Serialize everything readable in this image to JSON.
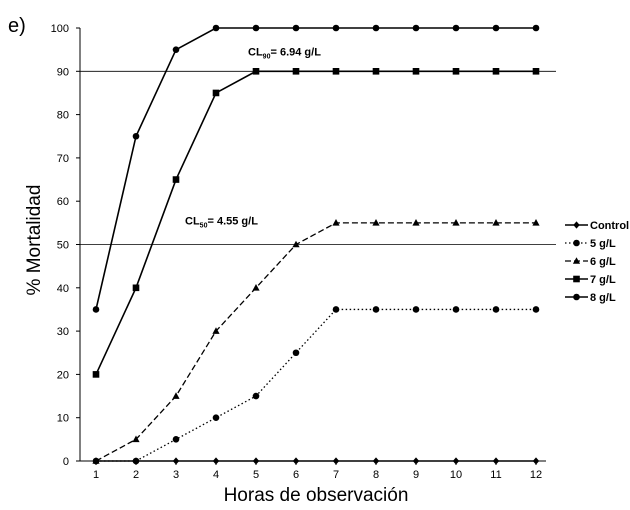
{
  "panel_label": "e)",
  "chart_data": {
    "type": "line",
    "xlabel": "Horas de observación",
    "ylabel": "% Mortalidad",
    "x": [
      1,
      2,
      3,
      4,
      5,
      6,
      7,
      8,
      9,
      10,
      11,
      12
    ],
    "xlim": [
      1,
      12
    ],
    "ylim": [
      0,
      100
    ],
    "yticks": [
      0,
      10,
      20,
      30,
      40,
      50,
      60,
      70,
      80,
      90,
      100
    ],
    "grid": false,
    "legend_position": "right",
    "reference_lines": [
      {
        "y": 90,
        "label_main": "CL",
        "label_sub": "90",
        "label_rest": "= 6.94 g/L"
      },
      {
        "y": 50,
        "label_main": "CL",
        "label_sub": "50",
        "label_rest": "= 4.55 g/L"
      }
    ],
    "series": [
      {
        "name": "Control",
        "marker": "diamond",
        "dash": "solid",
        "values": [
          0,
          0,
          0,
          0,
          0,
          0,
          0,
          0,
          0,
          0,
          0,
          0
        ]
      },
      {
        "name": "5 g/L",
        "marker": "circle",
        "dash": "dotted",
        "values": [
          0,
          0,
          5,
          10,
          15,
          25,
          35,
          35,
          35,
          35,
          35,
          35
        ]
      },
      {
        "name": "6 g/L",
        "marker": "triangle",
        "dash": "dashed",
        "values": [
          0,
          5,
          15,
          30,
          40,
          50,
          55,
          55,
          55,
          55,
          55,
          55
        ]
      },
      {
        "name": "7 g/L",
        "marker": "square",
        "dash": "solid",
        "values": [
          20,
          40,
          65,
          85,
          90,
          90,
          90,
          90,
          90,
          90,
          90,
          90
        ]
      },
      {
        "name": "8 g/L",
        "marker": "circle",
        "dash": "solid",
        "values": [
          35,
          75,
          95,
          100,
          100,
          100,
          100,
          100,
          100,
          100,
          100,
          100
        ]
      }
    ]
  }
}
